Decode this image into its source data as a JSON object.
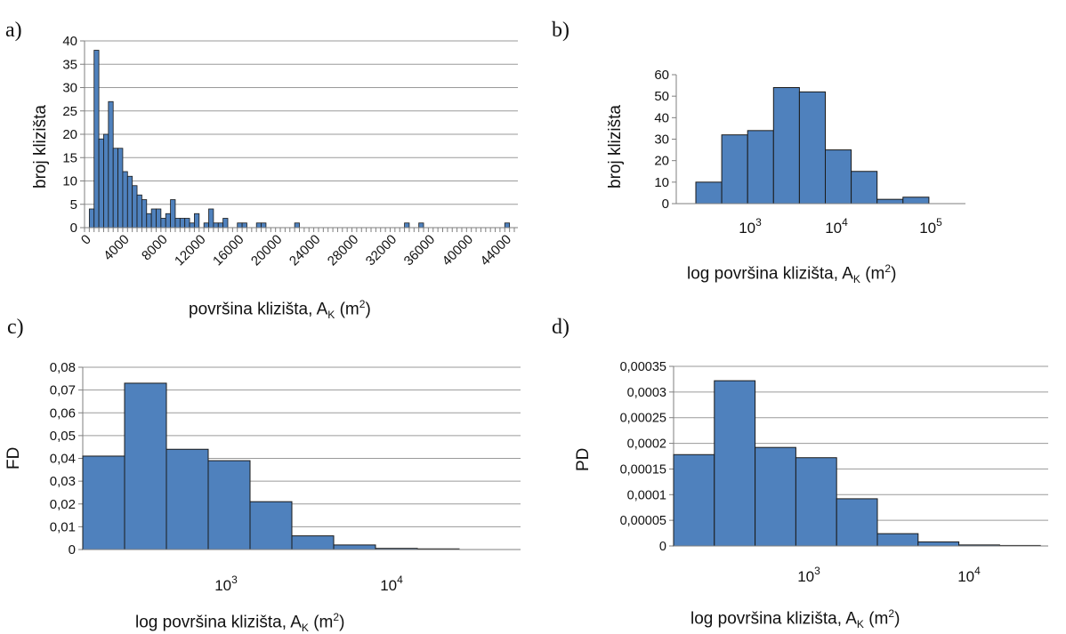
{
  "colors": {
    "bar": "#4f81bd",
    "bar_stroke": "#1a1a1a",
    "grid": "#9a9a9a",
    "axis": "#7f7f7f"
  },
  "chart_data": [
    {
      "panel": "a)",
      "type": "bar",
      "xlabel": {
        "pre": "površina klizišta, A",
        "sub": "K",
        "mid": " (m",
        "sup": "2",
        "post": ")"
      },
      "ylabel": "broj klizišta",
      "ylim": [
        0,
        40
      ],
      "yticks": [
        "0",
        "5",
        "10",
        "15",
        "20",
        "25",
        "30",
        "35",
        "40"
      ],
      "xticks": [
        "0",
        "4000",
        "8000",
        "12000",
        "16000",
        "20000",
        "24000",
        "28000",
        "32000",
        "36000",
        "40000",
        "44000"
      ],
      "bin_width": 500,
      "x_start": 0,
      "values": [
        0,
        4,
        38,
        19,
        20,
        27,
        17,
        17,
        12,
        11,
        9,
        7,
        6,
        3,
        4,
        4,
        2,
        3,
        6,
        2,
        2,
        2,
        1,
        3,
        0,
        1,
        4,
        1,
        1,
        2,
        0,
        0,
        1,
        1,
        0,
        0,
        1,
        1,
        0,
        0,
        0,
        0,
        0,
        0,
        1,
        0,
        0,
        0,
        0,
        0,
        0,
        0,
        0,
        0,
        0,
        0,
        0,
        0,
        0,
        0,
        0,
        0,
        0,
        0,
        0,
        0,
        0,
        1,
        0,
        0,
        1,
        0,
        0,
        0,
        0,
        0,
        0,
        0,
        0,
        0,
        0,
        0,
        0,
        0,
        0,
        0,
        0,
        0,
        1,
        0
      ],
      "grid": true
    },
    {
      "panel": "b)",
      "type": "bar",
      "xlabel": {
        "pre": "log površina klizišta, A",
        "sub": "K",
        "mid": " (m",
        "sup": "2",
        "post": ")"
      },
      "ylabel": "broj klizišta",
      "ylim": [
        0,
        60
      ],
      "yticks": [
        "0",
        "10",
        "20",
        "30",
        "40",
        "50",
        "60"
      ],
      "xticks": [
        {
          "base": "10",
          "exp": "3"
        },
        {
          "base": "10",
          "exp": "4"
        },
        {
          "base": "10",
          "exp": "5"
        }
      ],
      "values": [
        10,
        32,
        34,
        54,
        52,
        25,
        15,
        2,
        3
      ],
      "grid": false
    },
    {
      "panel": "c)",
      "type": "bar",
      "xlabel": {
        "pre": "log površina klizišta, A",
        "sub": "K",
        "mid": " (m",
        "sup": "2",
        "post": ")"
      },
      "ylabel": "FD",
      "ylim": [
        0,
        0.08
      ],
      "yticks": [
        "0",
        "0,01",
        "0,02",
        "0,03",
        "0,04",
        "0,05",
        "0,06",
        "0,07",
        "0,08"
      ],
      "xticks": [
        {
          "base": "10",
          "exp": "3"
        },
        {
          "base": "10",
          "exp": "4"
        }
      ],
      "values": [
        0.041,
        0.073,
        0.044,
        0.039,
        0.021,
        0.006,
        0.002,
        0.0005,
        0.0003
      ],
      "grid": true
    },
    {
      "panel": "d)",
      "type": "bar",
      "xlabel": {
        "pre": "log površina klizišta, A",
        "sub": "K",
        "mid": " (m",
        "sup": "2",
        "post": ")"
      },
      "ylabel": "PD",
      "ylim": [
        0,
        0.00035
      ],
      "yticks": [
        "0",
        "0,00005",
        "0,0001",
        "0,00015",
        "0,0002",
        "0,00025",
        "0,0003",
        "0,00035"
      ],
      "xticks": [
        {
          "base": "10",
          "exp": "3"
        },
        {
          "base": "10",
          "exp": "4"
        }
      ],
      "values": [
        0.000178,
        0.000322,
        0.000192,
        0.000172,
        9.2e-05,
        2.4e-05,
        8e-06,
        2e-06,
        1e-06
      ],
      "grid": true
    }
  ]
}
